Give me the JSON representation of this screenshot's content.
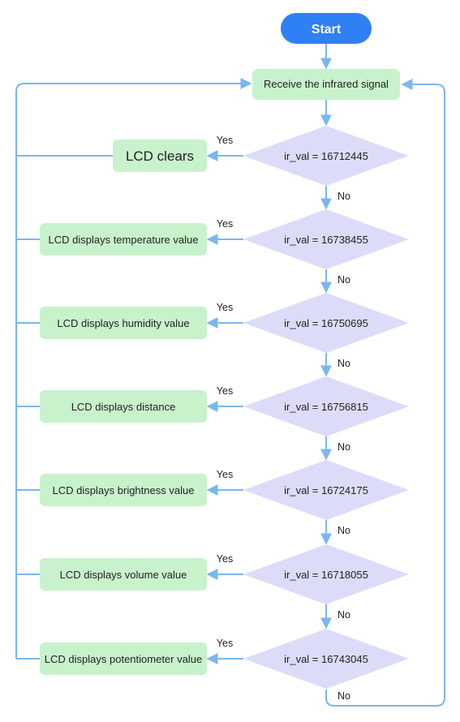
{
  "colors": {
    "start_fill": "#2f80f5",
    "process_fill": "#c8f2cc",
    "decision_fill": "#dcdcf8",
    "arrow": "#7ab7ee"
  },
  "start": "Start",
  "receive": "Receive the infrared signal",
  "branches": [
    {
      "condition": "ir_val = 16712445",
      "action": "LCD  clears",
      "yes": "Yes",
      "no": "No"
    },
    {
      "condition": "ir_val = 16738455",
      "action": "LCD displays temperature value",
      "yes": "Yes",
      "no": "No"
    },
    {
      "condition": "ir_val = 16750695",
      "action": "LCD displays humidity value",
      "yes": "Yes",
      "no": "No"
    },
    {
      "condition": "ir_val = 16756815",
      "action": "LCD displays distance",
      "yes": "Yes",
      "no": "No"
    },
    {
      "condition": "ir_val = 16724175",
      "action": "LCD displays brightness value",
      "yes": "Yes",
      "no": "No"
    },
    {
      "condition": "ir_val = 16718055",
      "action": "LCD displays volume value",
      "yes": "Yes",
      "no": "No"
    },
    {
      "condition": "ir_val = 16743045",
      "action": "LCD displays potentiometer value",
      "yes": "Yes",
      "no": "No"
    }
  ]
}
